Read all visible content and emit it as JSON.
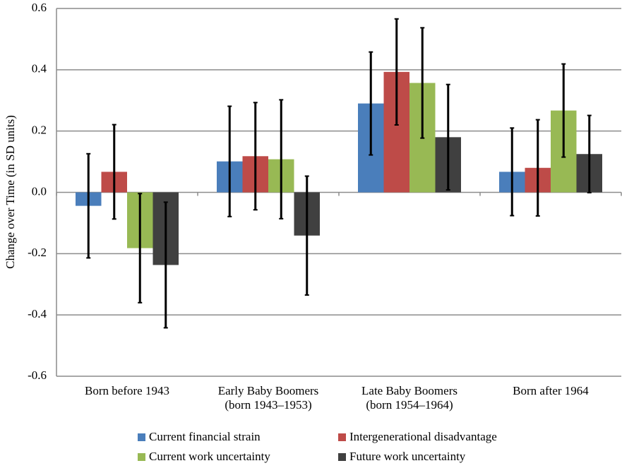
{
  "chart_data": {
    "type": "bar",
    "y_label": "Change over Time (in SD units)",
    "categories": [
      "Born before 1943",
      "Early Baby Boomers\n(born 1943–1953)",
      "Late Baby Boomers\n(born 1954–1964)",
      "Born after 1964"
    ],
    "series": [
      {
        "name": "Current financial strain",
        "color": "#4a7ebb",
        "values": [
          -0.044,
          0.101,
          0.29,
          0.067
        ],
        "errors": [
          0.17,
          0.18,
          0.168,
          0.143
        ]
      },
      {
        "name": "Intergenerational disadvantage",
        "color": "#be4b48",
        "values": [
          0.067,
          0.118,
          0.393,
          0.08
        ],
        "errors": [
          0.154,
          0.175,
          0.173,
          0.157
        ]
      },
      {
        "name": "Current work uncertainty",
        "color": "#98b954",
        "values": [
          -0.182,
          0.108,
          0.357,
          0.267
        ],
        "errors": [
          0.178,
          0.194,
          0.18,
          0.152
        ]
      },
      {
        "name": "Future work uncertainty",
        "color": "#404040",
        "values": [
          -0.237,
          -0.141,
          0.18,
          0.125
        ],
        "errors": [
          0.205,
          0.194,
          0.172,
          0.126
        ]
      }
    ],
    "ylim": [
      -0.6,
      0.6
    ],
    "yticks": [
      -0.6,
      -0.4,
      -0.2,
      {
        "value": 0,
        "label": "0.0"
      },
      0.2,
      0.4,
      0.6
    ],
    "grid": true
  }
}
